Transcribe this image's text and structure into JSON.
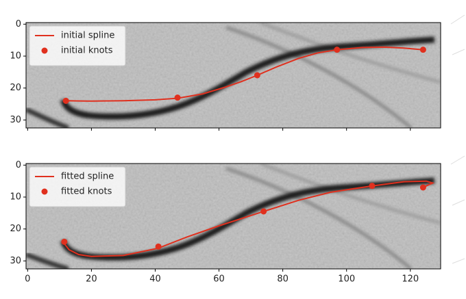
{
  "chart_data": [
    {
      "type": "line",
      "legend": "upper left",
      "show_xtick_labels": false,
      "xlim": [
        -0.5,
        129.5
      ],
      "ylim": [
        32.5,
        -0.5
      ],
      "xticks": [
        0,
        20,
        40,
        60,
        80,
        100,
        120
      ],
      "yticks": [
        0,
        10,
        20,
        30
      ],
      "series": [
        {
          "name": "initial spline",
          "type": "line",
          "color": "#e0301e",
          "x": [
            12,
            20,
            30,
            40,
            47,
            55,
            62,
            67,
            72,
            78,
            85,
            91,
            97,
            105,
            112,
            118,
            124
          ],
          "values": [
            24,
            24.1,
            24,
            23.7,
            23.2,
            21.8,
            19.7,
            18,
            16,
            13.4,
            10.7,
            9,
            8,
            7.3,
            7.2,
            7.5,
            8
          ]
        },
        {
          "name": "initial knots",
          "type": "scatter",
          "color": "#e0301e",
          "x": [
            12,
            47,
            72,
            97,
            124
          ],
          "values": [
            24,
            23,
            16,
            8,
            8
          ]
        }
      ]
    },
    {
      "type": "line",
      "legend": "upper left",
      "show_xtick_labels": true,
      "xlim": [
        -0.5,
        129.5
      ],
      "ylim": [
        32.5,
        -0.5
      ],
      "xticks": [
        0,
        20,
        40,
        60,
        80,
        100,
        120
      ],
      "yticks": [
        0,
        10,
        20,
        30
      ],
      "series": [
        {
          "name": "fitted spline",
          "type": "line",
          "color": "#e0301e",
          "x": [
            11,
            13,
            16,
            20,
            30,
            41,
            50,
            60,
            74,
            85,
            95,
            108,
            118,
            125,
            127,
            125,
            124
          ],
          "values": [
            24,
            26.5,
            28,
            28.6,
            28.3,
            26,
            22.5,
            19,
            14.5,
            11,
            8.5,
            6.5,
            5.2,
            5,
            5.6,
            6.5,
            7
          ]
        },
        {
          "name": "fitted knots",
          "type": "scatter",
          "color": "#e0301e",
          "x": [
            11.5,
            41,
            74,
            108,
            124
          ],
          "values": [
            24,
            25.5,
            14.5,
            6.5,
            7
          ]
        }
      ]
    }
  ]
}
